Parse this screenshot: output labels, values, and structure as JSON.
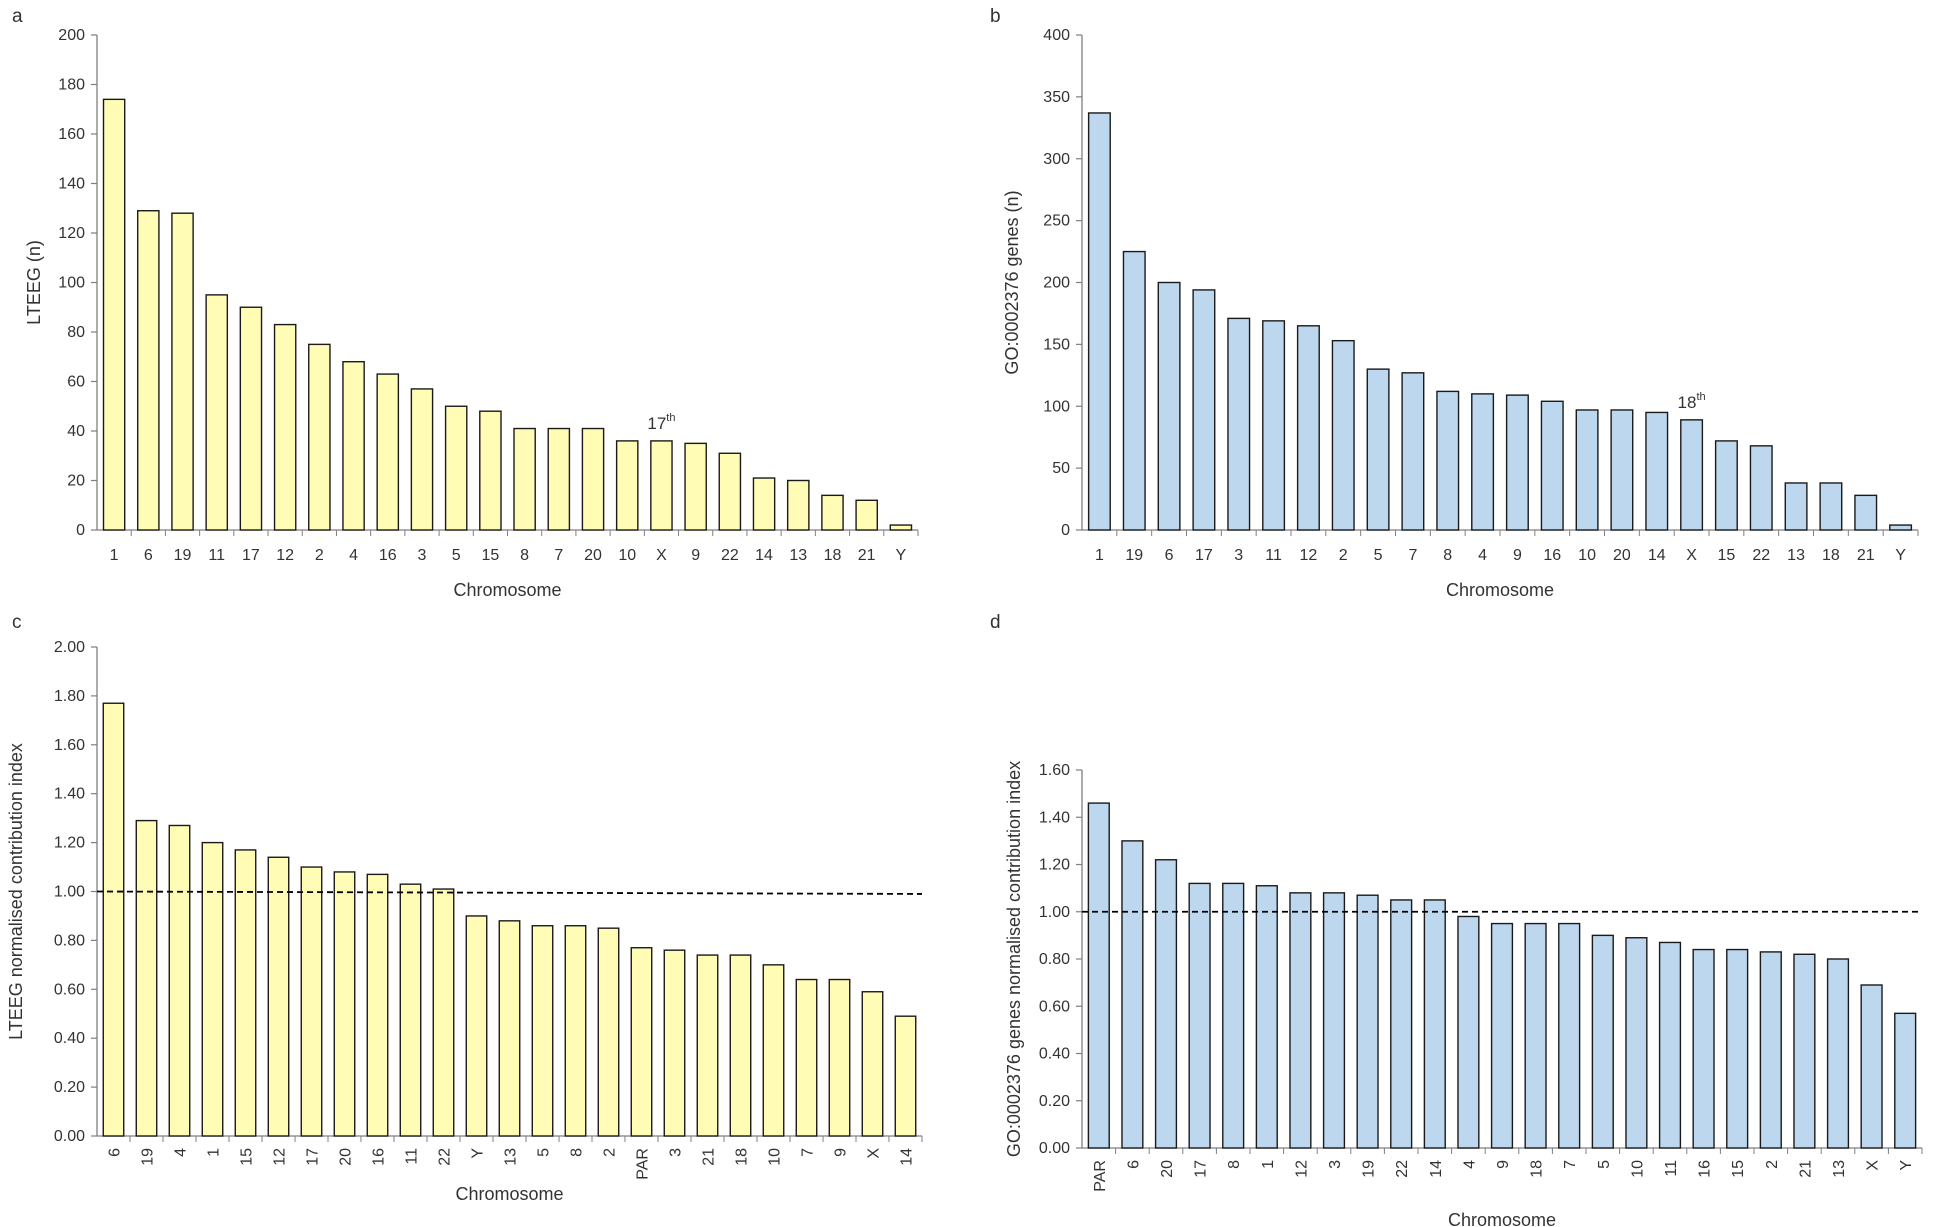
{
  "colors": {
    "yellow": "#fffcb5",
    "blue": "#bdd7ee",
    "stroke": "#1a1a1a",
    "axis": "#7f7f7f"
  },
  "chart_data": [
    {
      "panel": "a",
      "type": "bar",
      "ylabel": "LTEEG (n)",
      "xlabel": "Chromosome",
      "ylim": [
        0,
        200
      ],
      "ytick_step": 20,
      "ytick_decimals": 0,
      "fill": "yellow",
      "categories": [
        "1",
        "6",
        "19",
        "11",
        "17",
        "12",
        "2",
        "4",
        "16",
        "3",
        "5",
        "15",
        "8",
        "7",
        "20",
        "10",
        "X",
        "9",
        "22",
        "14",
        "13",
        "18",
        "21",
        "Y"
      ],
      "values": [
        174,
        129,
        128,
        95,
        90,
        83,
        75,
        68,
        63,
        57,
        50,
        48,
        41,
        41,
        41,
        36,
        36,
        35,
        31,
        21,
        20,
        14,
        12,
        2
      ],
      "rotate_labels": false,
      "annotation": {
        "text": "17",
        "sup": "th",
        "category": "X"
      }
    },
    {
      "panel": "b",
      "type": "bar",
      "ylabel": "GO:0002376 genes (n)",
      "xlabel": "Chromosome",
      "ylim": [
        0,
        400
      ],
      "ytick_step": 50,
      "ytick_decimals": 0,
      "fill": "blue",
      "categories": [
        "1",
        "19",
        "6",
        "17",
        "3",
        "11",
        "12",
        "2",
        "5",
        "7",
        "8",
        "4",
        "9",
        "16",
        "10",
        "20",
        "14",
        "X",
        "15",
        "22",
        "13",
        "18",
        "21",
        "Y"
      ],
      "values": [
        337,
        225,
        200,
        194,
        171,
        169,
        165,
        153,
        130,
        127,
        112,
        110,
        109,
        104,
        97,
        97,
        95,
        89,
        72,
        68,
        38,
        38,
        28,
        4
      ],
      "rotate_labels": false,
      "annotation": {
        "text": "18",
        "sup": "th",
        "category": "X"
      }
    },
    {
      "panel": "c",
      "type": "bar",
      "ylabel": "LTEEG normalised contribution index",
      "xlabel": "Chromosome",
      "ylim": [
        0,
        2
      ],
      "ytick_step": 0.2,
      "ytick_decimals": 2,
      "fill": "yellow",
      "categories": [
        "6",
        "19",
        "4",
        "1",
        "15",
        "12",
        "17",
        "20",
        "16",
        "11",
        "22",
        "Y",
        "13",
        "5",
        "8",
        "2",
        "PAR",
        "3",
        "21",
        "18",
        "10",
        "7",
        "9",
        "X",
        "14"
      ],
      "values": [
        1.77,
        1.29,
        1.27,
        1.2,
        1.17,
        1.14,
        1.1,
        1.08,
        1.07,
        1.03,
        1.01,
        0.9,
        0.88,
        0.86,
        0.86,
        0.85,
        0.77,
        0.76,
        0.74,
        0.74,
        0.7,
        0.64,
        0.64,
        0.59,
        0.49
      ],
      "rotate_labels": true,
      "reference_line": [
        1.0,
        0.99
      ]
    },
    {
      "panel": "d",
      "type": "bar",
      "ylabel": "GO:0002376 genes normalised contribution index",
      "xlabel": "Chromosome",
      "ylim": [
        0,
        1.6
      ],
      "ytick_step": 0.2,
      "ytick_decimals": 2,
      "fill": "blue",
      "categories": [
        "PAR",
        "6",
        "20",
        "17",
        "8",
        "1",
        "12",
        "3",
        "19",
        "22",
        "14",
        "4",
        "9",
        "18",
        "7",
        "5",
        "10",
        "11",
        "16",
        "15",
        "2",
        "21",
        "13",
        "X",
        "Y"
      ],
      "values": [
        1.46,
        1.3,
        1.22,
        1.12,
        1.12,
        1.11,
        1.08,
        1.08,
        1.07,
        1.05,
        1.05,
        0.98,
        0.95,
        0.95,
        0.95,
        0.9,
        0.89,
        0.87,
        0.84,
        0.84,
        0.83,
        0.82,
        0.8,
        0.69,
        0.57
      ],
      "rotate_labels": true,
      "reference_line": [
        1.0,
        1.0
      ]
    }
  ]
}
